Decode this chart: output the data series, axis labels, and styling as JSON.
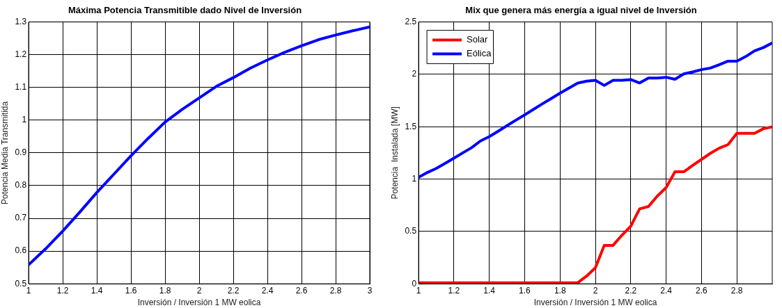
{
  "chart_data": [
    {
      "type": "line",
      "title": "Máxima Potencia Transmitible dado Nivel de Inversión",
      "xlabel": "Inversión / Inversión 1 MW eolica",
      "ylabel": "Potencia Media Transmitida",
      "x": [
        1,
        1.1,
        1.2,
        1.3,
        1.4,
        1.5,
        1.6,
        1.7,
        1.8,
        1.9,
        2,
        2.1,
        2.2,
        2.3,
        2.4,
        2.5,
        2.6,
        2.7,
        2.8,
        2.9,
        3
      ],
      "series": [
        {
          "color": "#0000ff",
          "values": [
            0.558,
            0.607,
            0.661,
            0.719,
            0.779,
            0.835,
            0.891,
            0.944,
            0.994,
            1.033,
            1.068,
            1.103,
            1.13,
            1.159,
            1.184,
            1.207,
            1.227,
            1.246,
            1.26,
            1.273,
            1.285
          ]
        }
      ],
      "xlim": [
        1,
        3
      ],
      "xticks": [
        1,
        1.2,
        1.4,
        1.6,
        1.8,
        2,
        2.2,
        2.4,
        2.6,
        2.8,
        3
      ],
      "ylim": [
        0.5,
        1.3
      ],
      "yticks": [
        0.5,
        0.6,
        0.7,
        0.8,
        0.9,
        1,
        1.1,
        1.2,
        1.3
      ],
      "grid": true,
      "marker": "none"
    },
    {
      "type": "line",
      "title": "Mix que genera más energía a igual nivel de Inversión",
      "xlabel": "Inversión / Inversión 1 MW eolica",
      "ylabel": "Potencia  Instalada [MW]",
      "x": [
        1,
        1.05,
        1.1,
        1.15,
        1.2,
        1.25,
        1.3,
        1.35,
        1.4,
        1.45,
        1.5,
        1.55,
        1.6,
        1.65,
        1.7,
        1.75,
        1.8,
        1.85,
        1.9,
        1.95,
        2,
        2.05,
        2.1,
        2.15,
        2.2,
        2.25,
        2.3,
        2.35,
        2.4,
        2.45,
        2.5,
        2.55,
        2.6,
        2.65,
        2.7,
        2.75,
        2.8,
        2.85,
        2.9,
        2.95,
        3
      ],
      "series": [
        {
          "name": "Solar",
          "color": "#ff0000",
          "values": [
            0.01,
            0.01,
            0.01,
            0.01,
            0.01,
            0.01,
            0.01,
            0.01,
            0.01,
            0.01,
            0.01,
            0.01,
            0.01,
            0.01,
            0.01,
            0.01,
            0.01,
            0.01,
            0.01,
            0.073,
            0.154,
            0.367,
            0.367,
            0.464,
            0.55,
            0.716,
            0.738,
            0.838,
            0.919,
            1.07,
            1.07,
            1.131,
            1.188,
            1.246,
            1.295,
            1.329,
            1.437,
            1.437,
            1.437,
            1.481,
            1.498
          ]
        },
        {
          "name": "Eólica",
          "color": "#0000ff",
          "values": [
            1.017,
            1.063,
            1.102,
            1.15,
            1.2,
            1.25,
            1.3,
            1.364,
            1.405,
            1.457,
            1.51,
            1.562,
            1.613,
            1.666,
            1.718,
            1.769,
            1.82,
            1.868,
            1.916,
            1.935,
            1.943,
            1.894,
            1.943,
            1.943,
            1.95,
            1.918,
            1.965,
            1.965,
            1.972,
            1.953,
            2.004,
            2.023,
            2.045,
            2.06,
            2.092,
            2.126,
            2.126,
            2.17,
            2.224,
            2.256,
            2.3
          ]
        }
      ],
      "xlim": [
        1,
        3
      ],
      "xticks": [
        1,
        1.2,
        1.4,
        1.6,
        1.8,
        2,
        2.2,
        2.4,
        2.6,
        2.8
      ],
      "ylim": [
        0,
        2.5
      ],
      "yticks": [
        0,
        0.5,
        1,
        1.5,
        2,
        2.5
      ],
      "grid": true,
      "legend": "top left",
      "marker": "none"
    }
  ]
}
